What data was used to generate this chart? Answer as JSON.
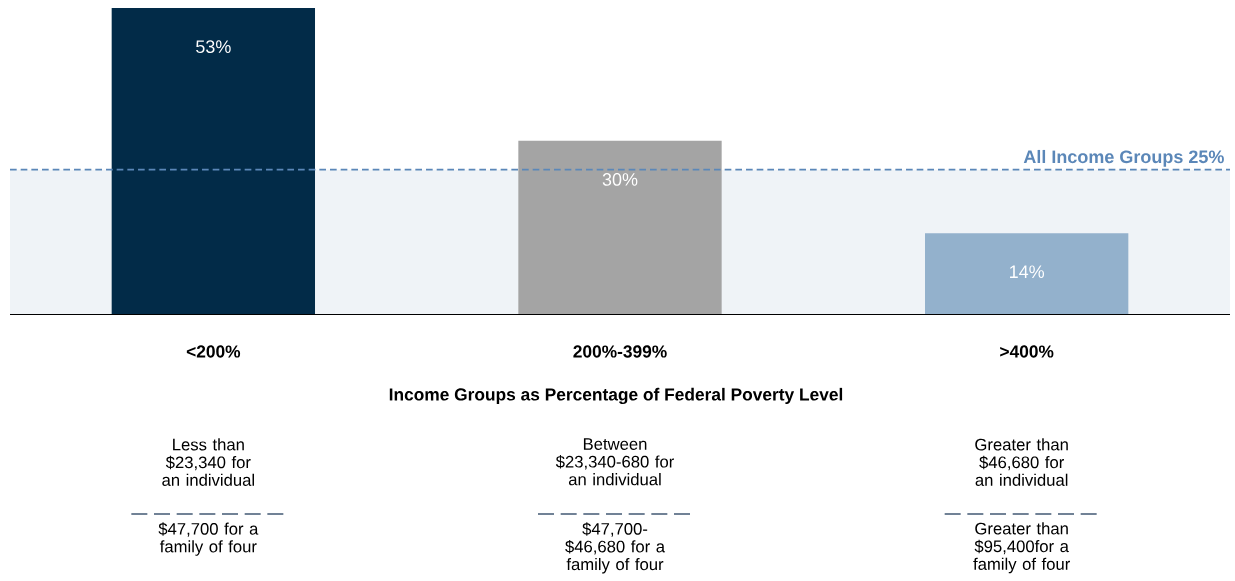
{
  "chart_data": {
    "type": "bar",
    "categories": [
      "<200%",
      "200%-399%",
      ">400%"
    ],
    "values": [
      53,
      30,
      14
    ],
    "colors": [
      "#022b48",
      "#a4a4a4",
      "#93b1cc"
    ],
    "value_labels": [
      "53%",
      "30%",
      "14%"
    ],
    "ylim": [
      0,
      53
    ],
    "xlabel": "Income Groups as Percentage of Federal Poverty Level",
    "ref_lines": [
      {
        "axis": "y",
        "value": 25,
        "label": "All Income Groups 25%",
        "color": "#5b87b8",
        "line_style": "dashed"
      }
    ],
    "bands": [
      {
        "axis": "y",
        "from": 0,
        "to": 25,
        "color": "#eff3f7"
      }
    ],
    "annotations": [
      "Less than $23,340 for an individual",
      "$47,700 for a family of four",
      "Between $23,340-680 for an individual",
      "$47,700- $46,680 for a family of four",
      "Greater than $46,680 for an individual",
      "Greater than $95,400for a family of four"
    ],
    "tick_labels": "x"
  }
}
